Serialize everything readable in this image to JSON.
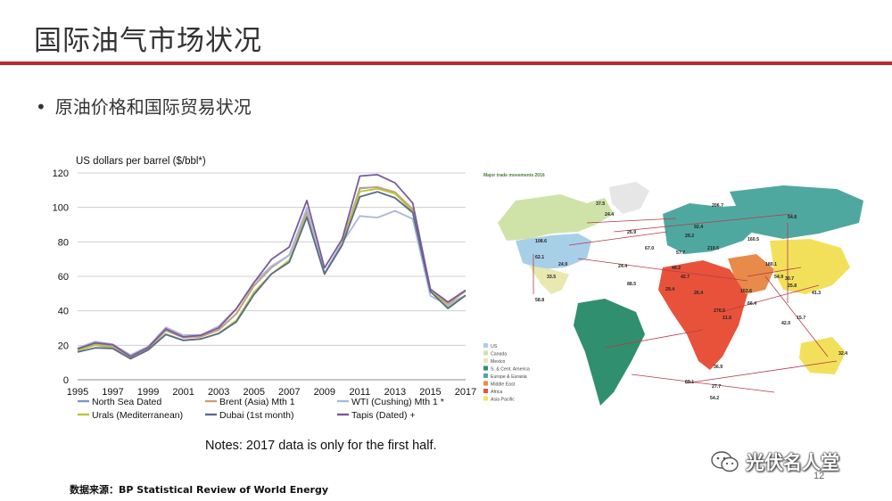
{
  "slide": {
    "title": "国际油气市场状况",
    "bullet": "原油价格和国际贸易状况",
    "note": "Notes: 2017 data is only for the first half.",
    "source": "数据来源：BP Statistical Review of World Energy",
    "page_number": "12",
    "watermark": "光伏名人堂",
    "accent_color": "#c0262d"
  },
  "map": {
    "title": "Major trade movements 2016",
    "legend": [
      "US",
      "Canada",
      "Mexico",
      "S. & Cent. America",
      "Europe & Eurasia",
      "Middle East",
      "Africa",
      "Asia Pacific"
    ],
    "legend_colors": [
      "#a8cfe8",
      "#cfe3a8",
      "#e8e8b0",
      "#2f8f6e",
      "#4fa8a0",
      "#e88a4a",
      "#e8523a",
      "#f3e05a"
    ],
    "labels": [
      "37.5",
      "206.7",
      "24.4",
      "54.8",
      "26.9",
      "29.2",
      "108.6",
      "92.4",
      "57.7",
      "67.0",
      "219.5",
      "160.5",
      "62.1",
      "24.9",
      "49.2",
      "180.1",
      "54.9",
      "30.7",
      "24.4",
      "29.4",
      "26.4",
      "33.5",
      "88.5",
      "42.7",
      "25.8",
      "41.3",
      "58.8",
      "66.4",
      "153.6",
      "15.7",
      "270.5",
      "42.0",
      "21.6",
      "32.4",
      "36.9",
      "69.1",
      "27.7",
      "54.2"
    ]
  },
  "chart_data": {
    "type": "line",
    "ylabel": "US dollars per barrel ($/bbl*)",
    "ylim": [
      0,
      120
    ],
    "yticks": [
      0,
      20,
      40,
      60,
      80,
      100,
      120
    ],
    "x": [
      1995,
      1996,
      1997,
      1998,
      1999,
      2000,
      2001,
      2002,
      2003,
      2004,
      2005,
      2006,
      2007,
      2008,
      2009,
      2010,
      2011,
      2012,
      2013,
      2014,
      2015,
      2016,
      2017
    ],
    "xtick_labels": [
      "1995",
      "1997",
      "1999",
      "2001",
      "2003",
      "2005",
      "2007",
      "2009",
      "2011",
      "2013",
      "2015",
      "2017"
    ],
    "xtick_values": [
      1995,
      1997,
      1999,
      2001,
      2003,
      2005,
      2007,
      2009,
      2011,
      2013,
      2015,
      2017
    ],
    "grid": "horizontal",
    "legend_position": "bottom",
    "series": [
      {
        "name": "North Sea Dated",
        "color": "#7f96c0",
        "values": [
          17.0,
          20.7,
          19.1,
          12.7,
          17.9,
          28.5,
          24.4,
          25.0,
          28.8,
          38.3,
          54.5,
          65.1,
          72.4,
          97.3,
          61.7,
          79.5,
          111.3,
          111.7,
          108.7,
          99.0,
          52.4,
          43.7,
          49.0
        ]
      },
      {
        "name": "Brent (Asia) Mth 1",
        "color": "#c9a27a",
        "values": [
          17.1,
          20.7,
          19.1,
          12.8,
          17.9,
          28.7,
          24.5,
          25.0,
          28.9,
          38.5,
          54.6,
          65.2,
          72.4,
          97.0,
          61.7,
          79.6,
          110.9,
          111.9,
          108.9,
          98.9,
          52.4,
          44.1,
          51.4
        ]
      },
      {
        "name": "WTI (Cushing) Mth 1 *",
        "color": "#a9b8dc",
        "values": [
          18.4,
          22.2,
          20.6,
          14.4,
          19.3,
          30.4,
          25.9,
          26.1,
          31.1,
          41.4,
          56.5,
          66.0,
          72.3,
          99.6,
          61.7,
          79.4,
          95.0,
          94.1,
          98.0,
          93.3,
          48.7,
          43.3,
          49.0
        ]
      },
      {
        "name": "Urals (Mediterranean)",
        "color": "#b5c93a",
        "values": [
          17.0,
          20.1,
          18.3,
          12.2,
          17.3,
          26.6,
          22.9,
          23.7,
          27.0,
          34.5,
          50.8,
          61.4,
          69.4,
          94.9,
          61.2,
          78.4,
          109.2,
          110.8,
          108.0,
          97.6,
          51.9,
          42.1,
          48.9
        ]
      },
      {
        "name": "Dubai (1st month)",
        "color": "#5b6b8c",
        "values": [
          16.1,
          18.5,
          18.1,
          12.2,
          17.3,
          26.2,
          22.8,
          23.7,
          26.8,
          33.6,
          49.4,
          61.5,
          68.2,
          94.3,
          61.4,
          78.1,
          106.2,
          109.1,
          105.5,
          97.0,
          51.2,
          41.4,
          49.0
        ]
      },
      {
        "name": "Tapis (Dated) +",
        "color": "#7a5a9a",
        "values": [
          17.9,
          21.4,
          20.3,
          13.5,
          18.7,
          29.5,
          24.9,
          25.8,
          30.1,
          41.1,
          56.4,
          70.0,
          77.0,
          104.0,
          64.9,
          81.6,
          118.2,
          119.0,
          114.2,
          102.5,
          52.6,
          45.1,
          52.0
        ]
      }
    ]
  }
}
